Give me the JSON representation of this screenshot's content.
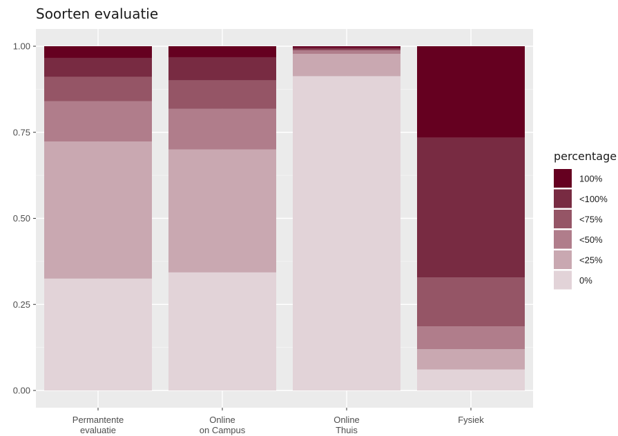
{
  "chart_data": {
    "type": "bar",
    "stacked": "proportional",
    "title": "Soorten evaluatie",
    "xlabel": "",
    "ylabel": "",
    "ylim": [
      0,
      1
    ],
    "yticks": [
      "0.00",
      "0.25",
      "0.50",
      "0.75",
      "1.00"
    ],
    "grid": true,
    "legend": {
      "title": "percentage",
      "placement": "right"
    },
    "categories": [
      "Permantente\nevaluatie",
      "Online\non Campus",
      "Online\nThuis",
      "Fysiek"
    ],
    "series": [
      {
        "name": "0%",
        "color": "#e2d3d8",
        "values": [
          0.325,
          0.343,
          0.913,
          0.061
        ]
      },
      {
        "name": "<25%",
        "color": "#c9a8b1",
        "values": [
          0.398,
          0.357,
          0.065,
          0.059
        ]
      },
      {
        "name": "<50%",
        "color": "#b07d8b",
        "values": [
          0.117,
          0.118,
          0.01,
          0.066
        ]
      },
      {
        "name": "<75%",
        "color": "#955566",
        "values": [
          0.071,
          0.083,
          0.003,
          0.142
        ]
      },
      {
        "name": "<100%",
        "color": "#782b42",
        "values": [
          0.055,
          0.067,
          0.005,
          0.406
        ]
      },
      {
        "name": "100%",
        "color": "#650020",
        "values": [
          0.034,
          0.032,
          0.004,
          0.266
        ]
      }
    ]
  }
}
